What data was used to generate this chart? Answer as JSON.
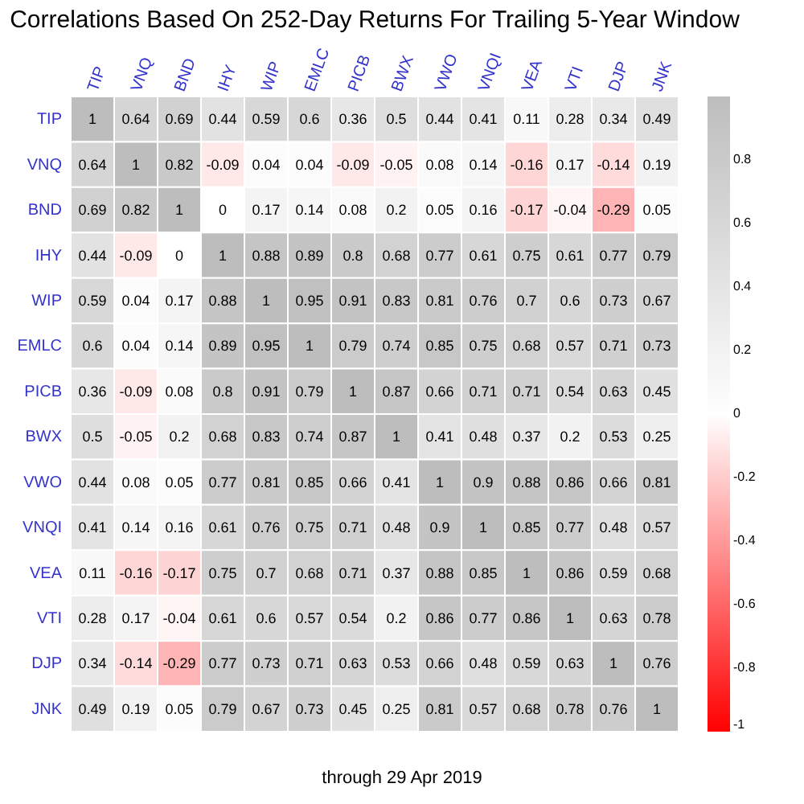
{
  "chart_data": {
    "type": "heatmap",
    "title": "Correlations Based On 252-Day Returns For Trailing 5-Year Window",
    "categories": [
      "TIP",
      "VNQ",
      "BND",
      "IHY",
      "WIP",
      "EMLC",
      "PICB",
      "BWX",
      "VWO",
      "VNQI",
      "VEA",
      "VTI",
      "DJP",
      "JNK"
    ],
    "y_categories": [
      "TIP",
      "VNQ",
      "BND",
      "IHY",
      "WIP",
      "EMLC",
      "PICB",
      "BWX",
      "VWO",
      "VNQI",
      "VEA",
      "VTI",
      "DJP",
      "JNK"
    ],
    "cells": [
      [
        1,
        0.64,
        0.69,
        0.44,
        0.59,
        0.6,
        0.36,
        0.5,
        0.44,
        0.41,
        0.11,
        0.28,
        0.34,
        0.49
      ],
      [
        0.64,
        1,
        0.82,
        -0.09,
        0.04,
        0.04,
        -0.09,
        -0.05,
        0.08,
        0.14,
        -0.16,
        0.17,
        -0.14,
        0.19
      ],
      [
        0.69,
        0.82,
        1,
        0,
        0.17,
        0.14,
        0.08,
        0.2,
        0.05,
        0.16,
        -0.17,
        -0.04,
        -0.29,
        0.05
      ],
      [
        0.44,
        -0.09,
        0,
        1,
        0.88,
        0.89,
        0.8,
        0.68,
        0.77,
        0.61,
        0.75,
        0.61,
        0.77,
        0.79
      ],
      [
        0.59,
        0.04,
        0.17,
        0.88,
        1,
        0.95,
        0.91,
        0.83,
        0.81,
        0.76,
        0.7,
        0.6,
        0.73,
        0.67
      ],
      [
        0.6,
        0.04,
        0.14,
        0.89,
        0.95,
        1,
        0.79,
        0.74,
        0.85,
        0.75,
        0.68,
        0.57,
        0.71,
        0.73
      ],
      [
        0.36,
        -0.09,
        0.08,
        0.8,
        0.91,
        0.79,
        1,
        0.87,
        0.66,
        0.71,
        0.71,
        0.54,
        0.63,
        0.45
      ],
      [
        0.5,
        -0.05,
        0.2,
        0.68,
        0.83,
        0.74,
        0.87,
        1,
        0.41,
        0.48,
        0.37,
        0.2,
        0.53,
        0.25
      ],
      [
        0.44,
        0.08,
        0.05,
        0.77,
        0.81,
        0.85,
        0.66,
        0.41,
        1,
        0.9,
        0.88,
        0.86,
        0.66,
        0.81
      ],
      [
        0.41,
        0.14,
        0.16,
        0.61,
        0.76,
        0.75,
        0.71,
        0.48,
        0.9,
        1,
        0.85,
        0.77,
        0.48,
        0.57
      ],
      [
        0.11,
        -0.16,
        -0.17,
        0.75,
        0.7,
        0.68,
        0.71,
        0.37,
        0.88,
        0.85,
        1,
        0.86,
        0.59,
        0.68
      ],
      [
        0.28,
        0.17,
        -0.04,
        0.61,
        0.6,
        0.57,
        0.54,
        0.2,
        0.86,
        0.77,
        0.86,
        1,
        0.63,
        0.78
      ],
      [
        0.34,
        -0.14,
        -0.29,
        0.77,
        0.73,
        0.71,
        0.63,
        0.53,
        0.66,
        0.48,
        0.59,
        0.63,
        1,
        0.76
      ],
      [
        0.49,
        0.19,
        0.05,
        0.79,
        0.67,
        0.73,
        0.45,
        0.25,
        0.81,
        0.57,
        0.68,
        0.78,
        0.76,
        1
      ]
    ],
    "data_labels": true,
    "clim": [
      -1,
      1
    ],
    "cticks": [
      -1,
      -0.8,
      -0.6,
      -0.4,
      -0.2,
      0,
      0.2,
      0.4,
      0.6,
      0.8
    ],
    "annotations": [
      "through 29 Apr 2019"
    ]
  }
}
